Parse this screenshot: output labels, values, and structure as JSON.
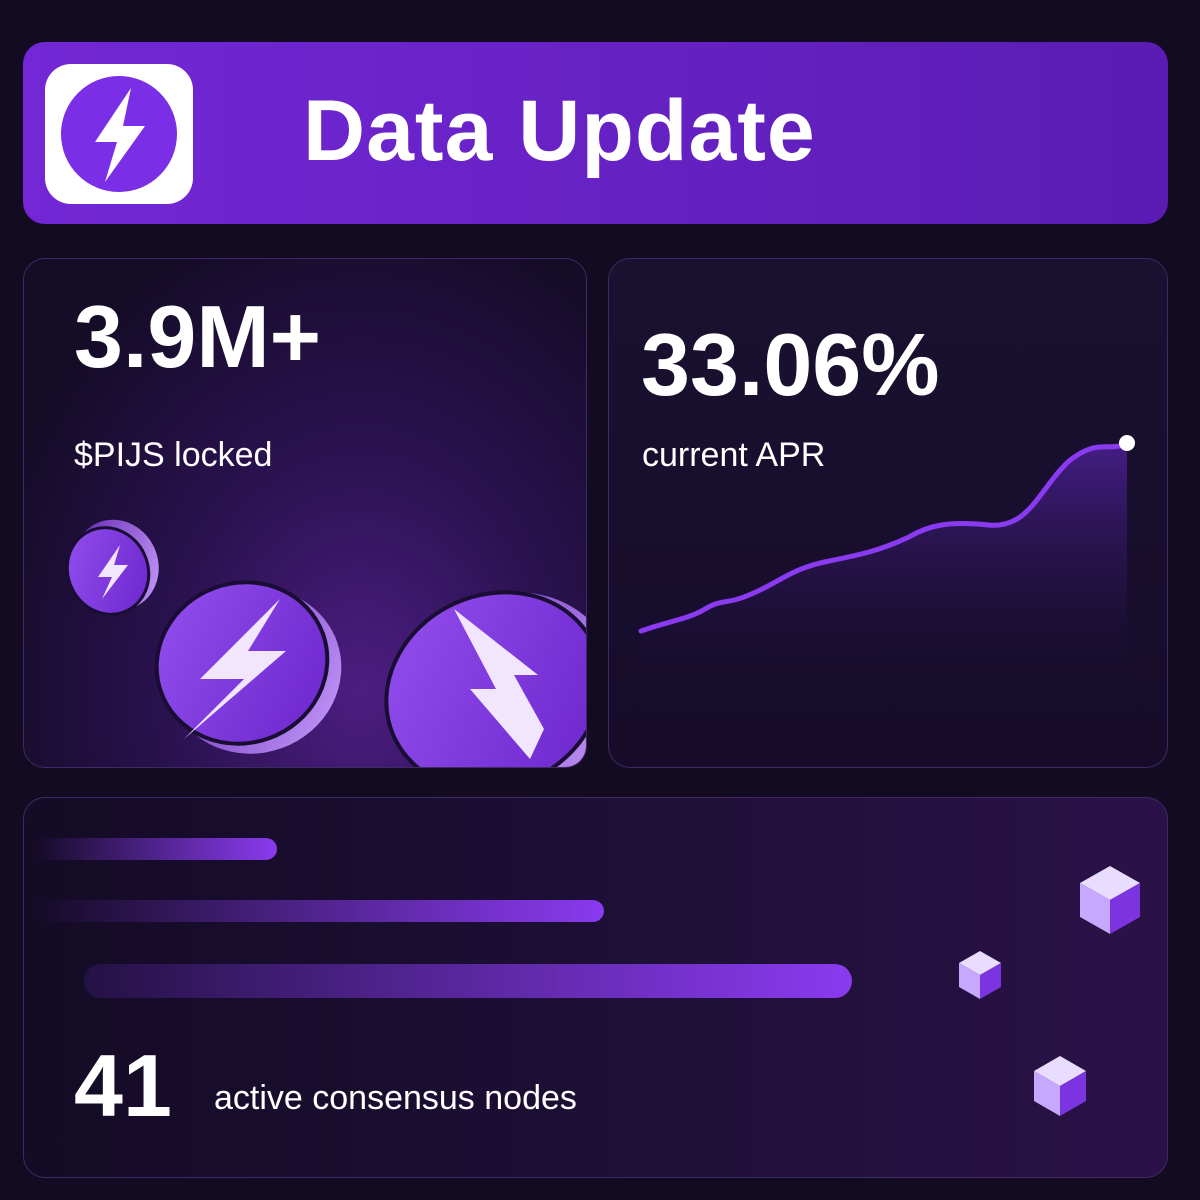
{
  "header": {
    "title": "Data Update",
    "icon": "lightning-icon"
  },
  "stats": {
    "locked": {
      "value": "3.9M+",
      "label": "$PIJS locked"
    },
    "apr": {
      "value": "33.06%",
      "label": "current APR"
    },
    "nodes": {
      "value": "41",
      "label": "active consensus nodes"
    }
  },
  "colors": {
    "accent": "#7327d6",
    "accent_light": "#8a3af0",
    "background": "#120b22"
  }
}
